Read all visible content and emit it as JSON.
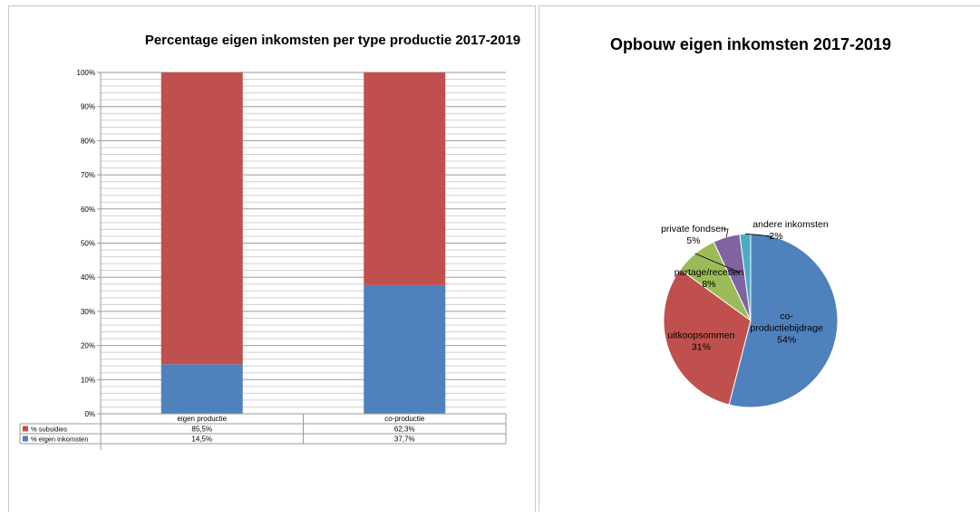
{
  "chart_data": [
    {
      "type": "bar",
      "stacked": true,
      "percent_stacked": true,
      "title": "Percentage eigen inkomsten per type productie 2017-2019",
      "categories": [
        "eigen productie",
        "co-productie"
      ],
      "y_ticks": [
        "0%",
        "10%",
        "20%",
        "30%",
        "40%",
        "50%",
        "60%",
        "70%",
        "80%",
        "90%",
        "100%"
      ],
      "ylim": [
        0,
        100
      ],
      "grid": true,
      "legend": "data-table",
      "series": [
        {
          "name": "% subsidies",
          "values": [
            85.5,
            62.3
          ],
          "labels": [
            "85,5%",
            "62,3%"
          ],
          "color": "#c0504d"
        },
        {
          "name": "% eigen inkomsten",
          "values": [
            14.5,
            37.7
          ],
          "labels": [
            "14,5%",
            "37,7%"
          ],
          "color": "#4f81bd"
        }
      ]
    },
    {
      "type": "pie",
      "title": "Opbouw eigen inkomsten 2017-2019",
      "slices": [
        {
          "name": "co-productiebijdrage",
          "label_lines": [
            "co-",
            "productiebijdrage"
          ],
          "value": 54,
          "pct_label": "54%",
          "color": "#4f81bd"
        },
        {
          "name": "uitkoopsommen",
          "label_lines": [
            "uitkoopsommen"
          ],
          "value": 31,
          "pct_label": "31%",
          "color": "#c0504d"
        },
        {
          "name": "partage/recetten",
          "label_lines": [
            "partage/recetten"
          ],
          "value": 8,
          "pct_label": "8%",
          "color": "#9bbb59"
        },
        {
          "name": "private fondsen",
          "label_lines": [
            "private fondsen"
          ],
          "value": 5,
          "pct_label": "5%",
          "color": "#8064a2"
        },
        {
          "name": "andere inkomsten",
          "label_lines": [
            "andere inkomsten"
          ],
          "value": 2,
          "pct_label": "2%",
          "color": "#4bacc6"
        }
      ]
    }
  ]
}
